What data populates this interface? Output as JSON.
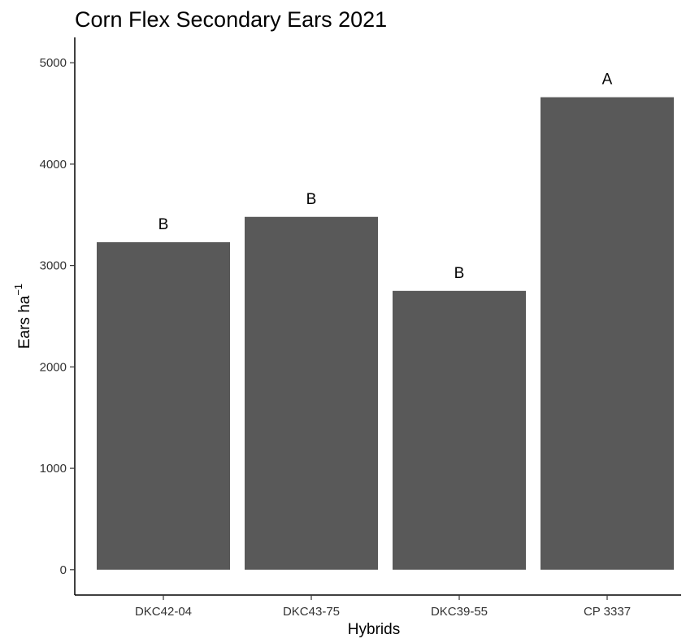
{
  "chart_data": {
    "type": "bar",
    "title": "Corn Flex Secondary Ears 2021",
    "xlabel": "Hybrids",
    "ylabel": "Ears ha",
    "ylabel_superscript": "−1",
    "categories": [
      "DKC42-04",
      "DKC43-75",
      "DKC39-55",
      "CP 3337"
    ],
    "values": [
      3230,
      3480,
      2750,
      4660
    ],
    "significance_letters": [
      "B",
      "B",
      "B",
      "A"
    ],
    "yticks": [
      0,
      1000,
      2000,
      3000,
      4000,
      5000
    ],
    "ylim": [
      -250,
      5250
    ],
    "grid": false,
    "legend": "none",
    "bar_color": "#595959"
  }
}
